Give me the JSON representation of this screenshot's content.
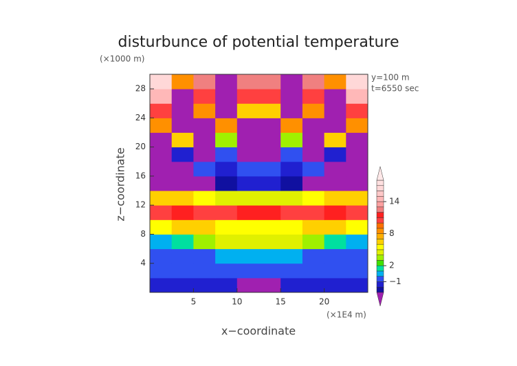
{
  "chart_data": {
    "type": "contour",
    "title": "disturbunce of potential temperature",
    "x_label": "x−coordinate",
    "y_label": "z−coordinate",
    "x_unit": "(×1E4 m)",
    "y_unit": "(×1000 m)",
    "annotations": [
      "y=100 m",
      "t=6550 sec"
    ],
    "xlim": [
      0,
      25
    ],
    "ylim": [
      0,
      30
    ],
    "xticks": [
      5,
      10,
      15,
      20
    ],
    "yticks": [
      4,
      8,
      12,
      16,
      20,
      24,
      28
    ],
    "x": [
      1.25,
      3.75,
      6.25,
      8.75,
      11.25,
      13.75,
      16.25,
      18.75,
      21.25,
      23.75
    ],
    "y": [
      1,
      3,
      5,
      7,
      9,
      11,
      13,
      15,
      17,
      19,
      21,
      23,
      25,
      27,
      29
    ],
    "z": [
      [
        -2,
        -2,
        -2,
        -2,
        -4,
        -4,
        -2,
        -2,
        -2,
        -2
      ],
      [
        -1,
        -1,
        -1,
        -1,
        -1,
        -1,
        -1,
        -1,
        -1,
        -1
      ],
      [
        -1,
        -1,
        -1,
        0,
        0,
        0,
        0,
        -1,
        -1,
        -1
      ],
      [
        0,
        1,
        3,
        4,
        4,
        4,
        4,
        3,
        1,
        0
      ],
      [
        5,
        6,
        6,
        5,
        5,
        5,
        5,
        6,
        6,
        5
      ],
      [
        10,
        11,
        10,
        10,
        11,
        11,
        10,
        10,
        11,
        10
      ],
      [
        6,
        6,
        5,
        4,
        4,
        4,
        4,
        5,
        6,
        6
      ],
      [
        -4,
        -4,
        -4,
        -3,
        -2,
        -2,
        -3,
        -4,
        -4,
        -4
      ],
      [
        -4,
        -4,
        -1,
        -2,
        -1,
        -1,
        -2,
        -1,
        -4,
        -4
      ],
      [
        -4,
        -2,
        -4,
        -1,
        -4,
        -4,
        -1,
        -4,
        -2,
        -4
      ],
      [
        -4,
        6,
        -4,
        3,
        -4,
        -4,
        3,
        -4,
        6,
        -4
      ],
      [
        8,
        -4,
        -4,
        8,
        -4,
        -4,
        8,
        -4,
        -4,
        8
      ],
      [
        10,
        -4,
        8,
        -4,
        6,
        6,
        -4,
        8,
        -4,
        10
      ],
      [
        14,
        -4,
        10,
        -4,
        10,
        10,
        -4,
        10,
        -4,
        14
      ],
      [
        16,
        8,
        12,
        -4,
        12,
        12,
        -4,
        12,
        8,
        16
      ]
    ],
    "colorbar": {
      "levels": [
        -3,
        -2,
        -1,
        0,
        1,
        2,
        3,
        4,
        5,
        6,
        7,
        8,
        9,
        10,
        11,
        12,
        13,
        14,
        15,
        16,
        17,
        18
      ],
      "colors": [
        "#1010a0",
        "#2020d0",
        "#3050f0",
        "#00b0f0",
        "#00e0a0",
        "#40e000",
        "#a0f000",
        "#e0f000",
        "#ffff00",
        "#ffd000",
        "#ffb000",
        "#ff9000",
        "#ff7000",
        "#ff4040",
        "#ff2020",
        "#f08080",
        "#ffa0a0",
        "#ffb8b8",
        "#ffc8c8",
        "#ffd8d8",
        "#ffe0e0"
      ],
      "under_color": "#a020b0",
      "over_color": "#ffe8e8",
      "ticks": [
        {
          "value": -1,
          "label": "−1"
        },
        2,
        8,
        14
      ]
    }
  }
}
